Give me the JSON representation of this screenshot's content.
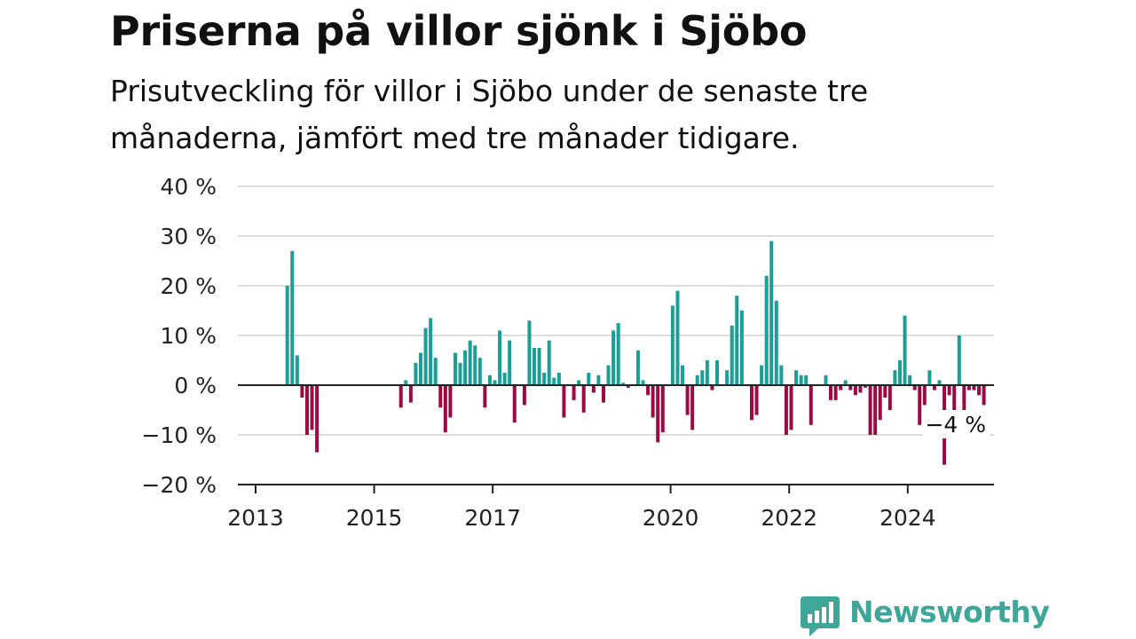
{
  "header": {
    "title": "Priserna på villor sjönk i Sjöbo",
    "subtitle": "Prisutveckling för villor i Sjöbo under de senaste tre månaderna, jämfört med tre månader tidigare."
  },
  "brand": {
    "name": "Newsworthy"
  },
  "colors": {
    "positive": "#1a9e95",
    "negative": "#9c0a44",
    "grid": "#dddddd",
    "axis": "#222222",
    "brand": "#3fa79a"
  },
  "chart_data": {
    "type": "bar",
    "title": "Priserna på villor sjönk i Sjöbo",
    "ylim": [
      -20,
      40
    ],
    "yticks": [
      "40 %",
      "30 %",
      "20 %",
      "10 %",
      "0 %",
      "−10 %",
      "−20 %"
    ],
    "xticks": [
      "2013",
      "2015",
      "2017",
      "2020",
      "2022",
      "2024"
    ],
    "start": "2013-01",
    "annotation": {
      "label": "−4 %",
      "value": -4
    },
    "values": [
      null,
      null,
      null,
      20,
      27,
      6,
      -2.5,
      -10,
      -9,
      -13.5,
      null,
      null,
      null,
      null,
      null,
      null,
      null,
      null,
      null,
      null,
      null,
      null,
      null,
      null,
      null,
      null,
      -4.5,
      1,
      -3.5,
      4.5,
      6.5,
      11.5,
      13.5,
      5.5,
      -4.5,
      -9.5,
      -6.5,
      6.5,
      4.5,
      7,
      9,
      8,
      5.5,
      -4.5,
      2,
      1,
      11,
      2.5,
      9,
      -7.5,
      null,
      -4,
      13,
      7.5,
      7.5,
      2.5,
      9,
      1.5,
      2.5,
      -6.5,
      null,
      -3,
      1,
      -5.5,
      2.5,
      -1.5,
      2,
      -3.5,
      4,
      11,
      12.5,
      0.5,
      -0.5,
      null,
      7,
      1,
      -2,
      -6.5,
      -11.5,
      -9.5,
      null,
      16,
      19,
      4,
      -6,
      -9,
      2,
      3,
      5,
      -1,
      5,
      null,
      3,
      12,
      18,
      15,
      null,
      -7,
      -6,
      4,
      22,
      29,
      17,
      4,
      -10,
      -9,
      3,
      2,
      2,
      -8,
      null,
      null,
      2,
      -3,
      -3,
      -1,
      1,
      -1,
      -2,
      -1.5,
      -0.5,
      -10,
      -10,
      -7,
      -2.5,
      -5,
      3,
      5,
      14,
      2,
      -1,
      -8,
      -4,
      3,
      -1,
      1,
      -16,
      -2,
      -5,
      10,
      -5,
      -1,
      -1,
      -2,
      -4
    ]
  }
}
